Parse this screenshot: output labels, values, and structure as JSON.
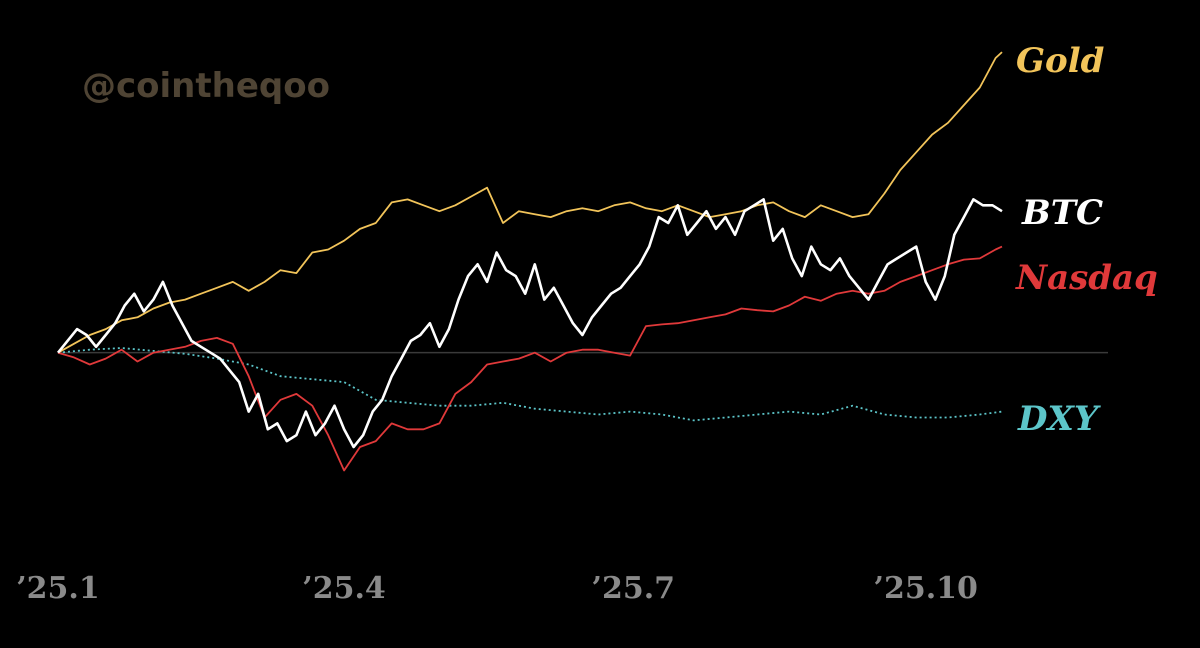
{
  "watermark": "@cointheqoo",
  "chart_data": {
    "type": "line",
    "title": "",
    "xlabel": "",
    "ylabel": "",
    "grid": false,
    "legend": "labels at right end of each line",
    "baseline": 0,
    "ylim": [
      -25,
      50
    ],
    "x_range": [
      0,
      297
    ],
    "x_unit": "days since start of 2025",
    "x_ticks": [
      {
        "label": "’25.1",
        "x": 0
      },
      {
        "label": "’25.4",
        "x": 90
      },
      {
        "label": "’25.7",
        "x": 181
      },
      {
        "label": "’25.10",
        "x": 273
      }
    ],
    "series": [
      {
        "name": "Gold",
        "color": "#f2c45a",
        "dash": false,
        "x": [
          0,
          5,
          10,
          15,
          20,
          25,
          30,
          35,
          40,
          45,
          50,
          55,
          60,
          65,
          70,
          75,
          80,
          85,
          90,
          95,
          100,
          105,
          110,
          115,
          120,
          125,
          130,
          135,
          140,
          145,
          150,
          155,
          160,
          165,
          170,
          175,
          180,
          185,
          190,
          195,
          200,
          205,
          210,
          215,
          220,
          225,
          230,
          235,
          240,
          245,
          250,
          255,
          260,
          265,
          270,
          275,
          280,
          285,
          290,
          295,
          297
        ],
        "y": [
          0,
          1.5,
          3,
          4,
          5.5,
          6,
          7.5,
          8.5,
          9,
          10,
          11,
          12,
          10.5,
          12,
          14,
          13.5,
          17,
          17.5,
          19,
          21,
          22,
          25.5,
          26,
          25,
          24,
          25,
          26.5,
          28,
          22,
          24,
          23.5,
          23,
          24,
          24.5,
          24,
          25,
          25.5,
          24.5,
          24,
          25,
          24,
          23,
          23.5,
          24,
          25,
          25.5,
          24,
          23,
          25,
          24,
          23,
          23.5,
          27,
          31,
          34,
          37,
          39,
          42,
          45,
          50,
          51
        ]
      },
      {
        "name": "BTC",
        "color": "#ffffff",
        "dash": false,
        "x": [
          0,
          3,
          6,
          9,
          12,
          15,
          18,
          21,
          24,
          27,
          30,
          33,
          36,
          39,
          42,
          45,
          48,
          51,
          54,
          57,
          60,
          63,
          66,
          69,
          72,
          75,
          78,
          81,
          84,
          87,
          90,
          93,
          96,
          99,
          102,
          105,
          108,
          111,
          114,
          117,
          120,
          123,
          126,
          129,
          132,
          135,
          138,
          141,
          144,
          147,
          150,
          153,
          156,
          159,
          162,
          165,
          168,
          171,
          174,
          177,
          180,
          183,
          186,
          189,
          192,
          195,
          198,
          201,
          204,
          207,
          210,
          213,
          216,
          219,
          222,
          225,
          228,
          231,
          234,
          237,
          240,
          243,
          246,
          249,
          252,
          255,
          258,
          261,
          264,
          267,
          270,
          273,
          276,
          279,
          282,
          285,
          288,
          291,
          294,
          297
        ],
        "y": [
          0,
          2,
          4,
          3,
          1,
          3,
          5,
          8,
          10,
          7,
          9,
          12,
          8,
          5,
          2,
          1,
          0,
          -1,
          -3,
          -5,
          -10,
          -7,
          -13,
          -12,
          -15,
          -14,
          -10,
          -14,
          -12,
          -9,
          -13,
          -16,
          -14,
          -10,
          -8,
          -4,
          -1,
          2,
          3,
          5,
          1,
          4,
          9,
          13,
          15,
          12,
          17,
          14,
          13,
          10,
          15,
          9,
          11,
          8,
          5,
          3,
          6,
          8,
          10,
          11,
          13,
          15,
          18,
          23,
          22,
          25,
          20,
          22,
          24,
          21,
          23,
          20,
          24,
          25,
          26,
          19,
          21,
          16,
          13,
          18,
          15,
          14,
          16,
          13,
          11,
          9,
          12,
          15,
          16,
          17,
          18,
          12,
          9,
          13,
          20,
          23,
          26,
          25,
          25,
          24
        ]
      },
      {
        "name": "Nasdaq",
        "color": "#e0393a",
        "dash": false,
        "x": [
          0,
          5,
          10,
          15,
          20,
          25,
          30,
          35,
          40,
          45,
          50,
          55,
          60,
          65,
          70,
          75,
          80,
          85,
          90,
          95,
          100,
          105,
          110,
          115,
          120,
          125,
          130,
          135,
          140,
          145,
          150,
          155,
          160,
          165,
          170,
          175,
          180,
          185,
          190,
          195,
          200,
          205,
          210,
          215,
          220,
          225,
          230,
          235,
          240,
          245,
          250,
          255,
          260,
          265,
          270,
          275,
          280,
          285,
          290,
          295,
          297
        ],
        "y": [
          0,
          -0.8,
          -2,
          -1,
          0.5,
          -1.5,
          0,
          0.5,
          1,
          2,
          2.5,
          1.5,
          -4,
          -11,
          -8,
          -7,
          -9,
          -14,
          -20,
          -16,
          -15,
          -12,
          -13,
          -13,
          -12,
          -7,
          -5,
          -2,
          -1.5,
          -1,
          0,
          -1.5,
          0,
          0.5,
          0.5,
          0,
          -0.5,
          4.5,
          4.8,
          5,
          5.5,
          6,
          6.5,
          7.5,
          7.2,
          7,
          8,
          9.5,
          8.8,
          10,
          10.5,
          10,
          10.5,
          12,
          13,
          14,
          15,
          15.8,
          16,
          17.5,
          18
        ]
      },
      {
        "name": "DXY",
        "color": "#5cc5c9",
        "dash": true,
        "x": [
          0,
          10,
          20,
          30,
          40,
          50,
          60,
          70,
          80,
          90,
          100,
          110,
          120,
          130,
          140,
          150,
          160,
          170,
          180,
          190,
          200,
          210,
          220,
          230,
          240,
          250,
          260,
          270,
          280,
          290,
          297
        ],
        "y": [
          0,
          0.5,
          0.8,
          0.3,
          -0.2,
          -1,
          -2,
          -4,
          -4.5,
          -5,
          -8,
          -8.5,
          -9,
          -9,
          -8.5,
          -9.5,
          -10,
          -10.5,
          -10,
          -10.5,
          -11.5,
          -11,
          -10.5,
          -10,
          -10.5,
          -9,
          -10.5,
          -11,
          -11,
          -10.5,
          -10
        ]
      }
    ]
  }
}
